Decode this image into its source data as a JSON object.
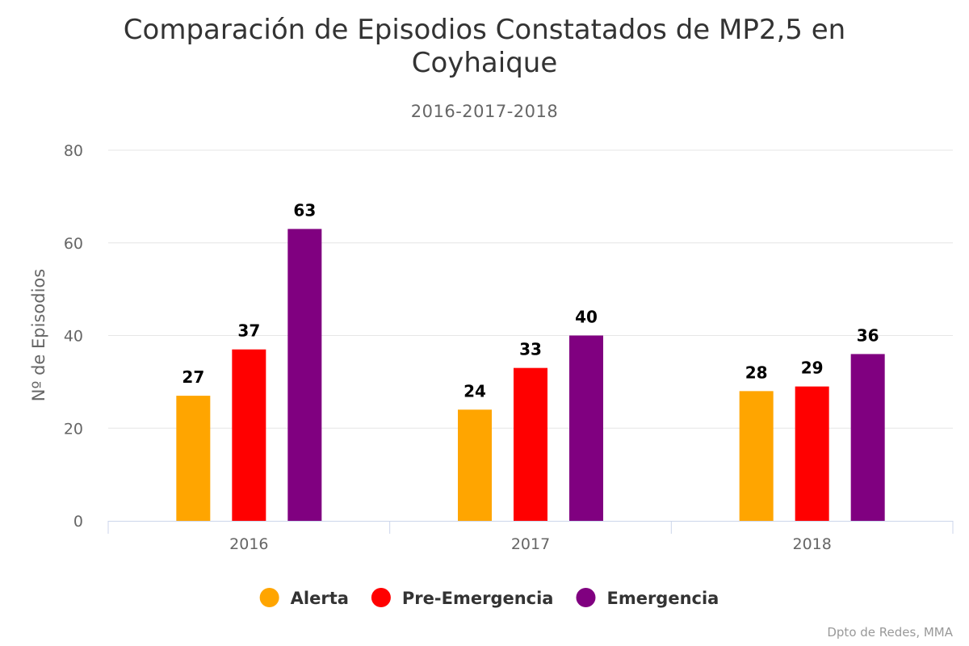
{
  "chart_data": {
    "type": "bar",
    "title_lines": [
      "Comparación de Episodios Constatados de MP2,5 en",
      "Coyhaique"
    ],
    "subtitle": "2016-2017-2018",
    "xlabel": "",
    "ylabel": "Nº de Episodios",
    "categories": [
      "2016",
      "2017",
      "2018"
    ],
    "ylim": [
      0,
      80
    ],
    "yticks": [
      0,
      20,
      40,
      60,
      80
    ],
    "grid": true,
    "legend_position": "bottom-center",
    "series": [
      {
        "name": "Alerta",
        "color": "#FFA500",
        "values": [
          27,
          24,
          28
        ]
      },
      {
        "name": "Pre-Emergencia",
        "color": "#FF0000",
        "values": [
          37,
          33,
          29
        ]
      },
      {
        "name": "Emergencia",
        "color": "#800080",
        "values": [
          63,
          40,
          36
        ]
      }
    ],
    "credits": "Dpto de Redes, MMA"
  }
}
